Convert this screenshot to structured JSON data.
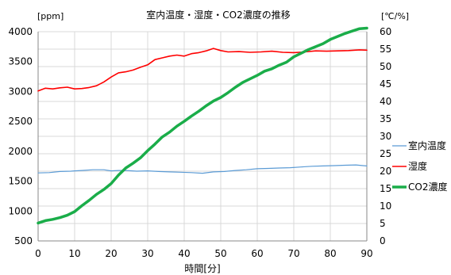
{
  "chart_data": {
    "type": "line",
    "title": "室内温度・湿度・CO2濃度の推移",
    "xlabel": "時間[分]",
    "ylabel_left": "[ppm]",
    "ylabel_right": "[℃/%]",
    "xlim": [
      0,
      90
    ],
    "ylim_left": [
      500,
      4000
    ],
    "ylim_right": [
      0,
      60
    ],
    "x_ticks": [
      0,
      10,
      20,
      30,
      40,
      50,
      60,
      70,
      80,
      90
    ],
    "y_ticks_left": [
      500,
      1000,
      1500,
      2000,
      2500,
      3000,
      3500,
      4000
    ],
    "y_ticks_right": [
      0,
      5,
      10,
      15,
      20,
      25,
      30,
      35,
      40,
      45,
      50,
      55,
      60
    ],
    "grid": true,
    "legend_position": "right",
    "series": [
      {
        "name": "室内温度",
        "axis": "right",
        "color": "#5b9bd5",
        "x": [
          0,
          3,
          6,
          9,
          10,
          12,
          15,
          18,
          20,
          22,
          24,
          27,
          30,
          33,
          36,
          39,
          42,
          45,
          48,
          51,
          54,
          57,
          60,
          63,
          66,
          69,
          72,
          75,
          78,
          81,
          84,
          87,
          89,
          90
        ],
        "values": [
          19.5,
          19.6,
          19.9,
          20.0,
          20.1,
          20.2,
          20.4,
          20.4,
          20.1,
          20.2,
          20.2,
          20.0,
          20.1,
          19.9,
          19.8,
          19.7,
          19.6,
          19.4,
          19.8,
          19.9,
          20.2,
          20.4,
          20.7,
          20.8,
          20.9,
          21.0,
          21.2,
          21.4,
          21.5,
          21.6,
          21.7,
          21.8,
          21.6,
          21.5
        ]
      },
      {
        "name": "湿度",
        "axis": "right",
        "color": "#ff0000",
        "x": [
          0,
          2,
          4,
          6,
          8,
          10,
          12,
          14,
          16,
          18,
          20,
          22,
          24,
          26,
          28,
          30,
          32,
          34,
          36,
          38,
          40,
          42,
          44,
          46,
          48,
          50,
          52,
          55,
          58,
          61,
          64,
          67,
          70,
          73,
          76,
          79,
          82,
          85,
          88,
          90
        ],
        "values": [
          43.0,
          43.8,
          43.6,
          43.9,
          44.1,
          43.6,
          43.7,
          44.0,
          44.5,
          45.6,
          47.0,
          48.2,
          48.5,
          49.0,
          49.8,
          50.5,
          52.0,
          52.5,
          53.0,
          53.3,
          53.0,
          53.7,
          54.0,
          54.5,
          55.2,
          54.6,
          54.2,
          54.3,
          54.1,
          54.2,
          54.4,
          54.1,
          54.0,
          54.2,
          54.5,
          54.4,
          54.5,
          54.6,
          54.8,
          54.7
        ]
      },
      {
        "name": "CO2濃度",
        "axis": "left",
        "color": "#1aad49",
        "x": [
          0,
          2,
          4,
          6,
          8,
          10,
          12,
          14,
          16,
          18,
          20,
          22,
          24,
          26,
          28,
          30,
          32,
          34,
          36,
          38,
          40,
          42,
          44,
          46,
          48,
          50,
          52,
          54,
          56,
          58,
          60,
          62,
          64,
          66,
          68,
          70,
          72,
          74,
          76,
          78,
          80,
          82,
          84,
          86,
          88,
          90
        ],
        "values": [
          800,
          840,
          860,
          890,
          930,
          990,
          1090,
          1180,
          1280,
          1360,
          1460,
          1600,
          1720,
          1800,
          1890,
          2010,
          2120,
          2240,
          2320,
          2420,
          2500,
          2590,
          2670,
          2760,
          2840,
          2900,
          2980,
          3070,
          3150,
          3210,
          3270,
          3340,
          3380,
          3440,
          3490,
          3580,
          3640,
          3700,
          3750,
          3800,
          3870,
          3920,
          3970,
          4010,
          4050,
          4060
        ]
      }
    ]
  }
}
